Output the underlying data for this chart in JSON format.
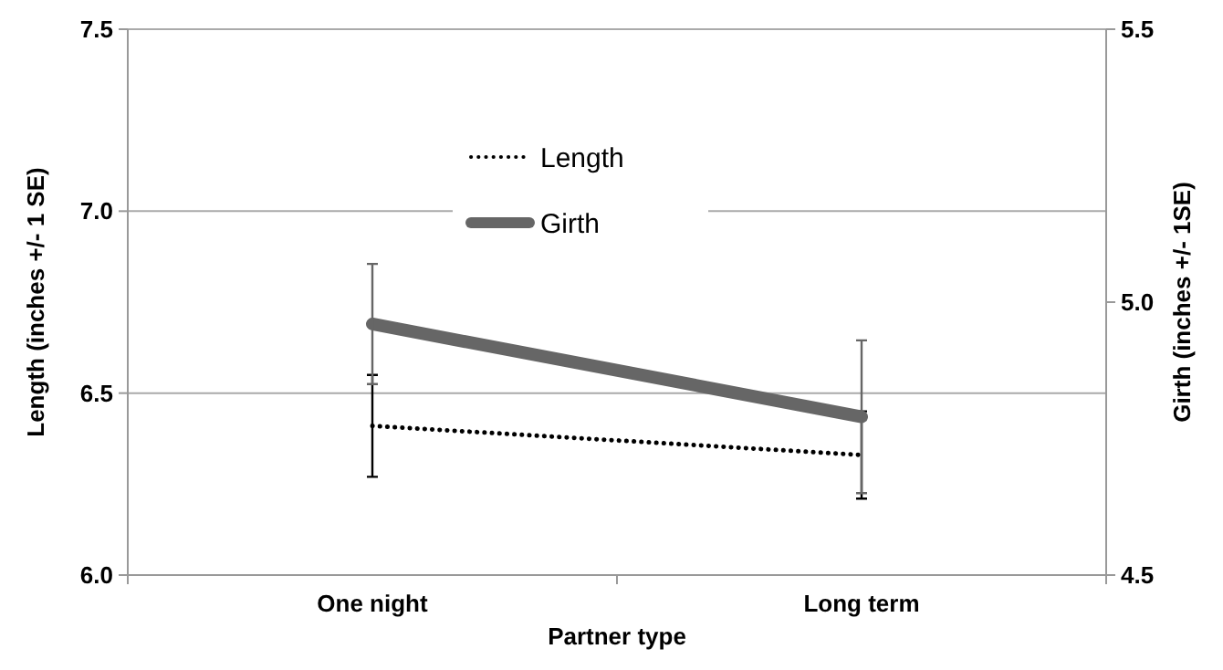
{
  "chart_data": {
    "type": "line",
    "xlabel": "Partner type",
    "ylabel": "Length (inches +/- 1 SE)",
    "y2label": "Girth (inches +/- 1SE)",
    "categories": [
      "One night",
      "Long term"
    ],
    "series": [
      {
        "name": "Length",
        "color": "#000000",
        "line_style": "dotted",
        "values": [
          6.41,
          6.33
        ],
        "errors": [
          0.14,
          0.12
        ]
      },
      {
        "name": "Girth",
        "color": "#666666",
        "line_style": "solid",
        "axis": "y2",
        "values": [
          4.96,
          4.79
        ],
        "errors": [
          0.11,
          0.14
        ]
      }
    ],
    "ylim": [
      6,
      7.5
    ],
    "yticks": [
      {
        "value": 6,
        "label": "6.0"
      },
      {
        "value": 6.5,
        "label": "6.5"
      },
      {
        "value": 7,
        "label": "7.0"
      },
      {
        "value": 7.5,
        "label": "7.5"
      }
    ],
    "y2lim": [
      4.5,
      5.5
    ],
    "y2ticks": [
      {
        "value": 4.5,
        "label": "4.5"
      },
      {
        "value": 5,
        "label": "5.0"
      },
      {
        "value": 5.5,
        "label": "5.5"
      }
    ],
    "grid": "y",
    "legend": "top",
    "marker": "none"
  }
}
